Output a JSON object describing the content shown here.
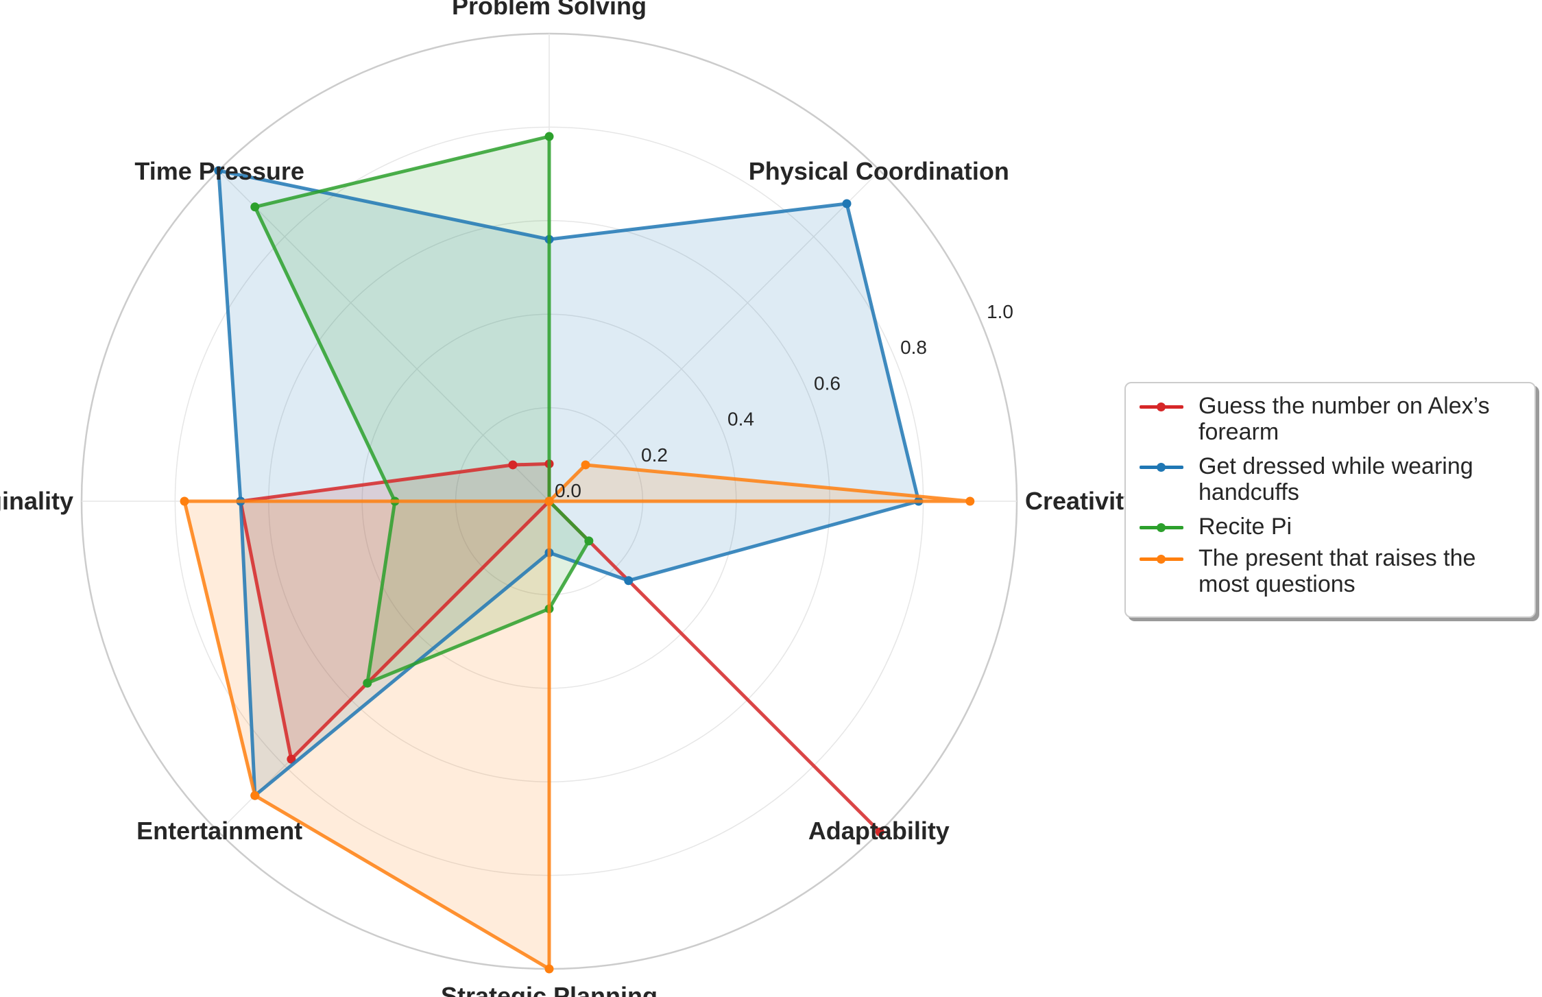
{
  "chart_data": {
    "type": "radar",
    "axes": [
      "Creativity",
      "Physical Coordination",
      "Problem Solving",
      "Time Pressure",
      "Originality",
      "Entertainment",
      "Strategic Planning",
      "Adaptability"
    ],
    "rlim": [
      0,
      1.0
    ],
    "rticks": [
      0.0,
      0.2,
      0.4,
      0.6,
      0.8,
      1.0
    ],
    "rtick_labels": [
      "0.0",
      "0.2",
      "0.4",
      "0.6",
      "0.8",
      "1.0"
    ],
    "grid": true,
    "legend_position": "right",
    "series": [
      {
        "name": "Guess the number on Alex’s forearm",
        "color": "#d62728",
        "values": [
          0.0,
          0.0,
          0.08,
          0.11,
          0.66,
          0.78,
          0.0,
          1.0
        ]
      },
      {
        "name": "Get dressed while wearing handcuffs",
        "color": "#1f77b4",
        "values": [
          0.79,
          0.9,
          0.56,
          1.0,
          0.66,
          0.89,
          0.11,
          0.24
        ]
      },
      {
        "name": "Recite Pi",
        "color": "#2ca02c",
        "values": [
          0.0,
          0.0,
          0.78,
          0.89,
          0.33,
          0.55,
          0.23,
          0.12
        ]
      },
      {
        "name": "The present that raises the most questions",
        "color": "#ff7f0e",
        "values": [
          0.9,
          0.11,
          0.0,
          0.0,
          0.78,
          0.89,
          1.0,
          0.0
        ]
      }
    ]
  }
}
